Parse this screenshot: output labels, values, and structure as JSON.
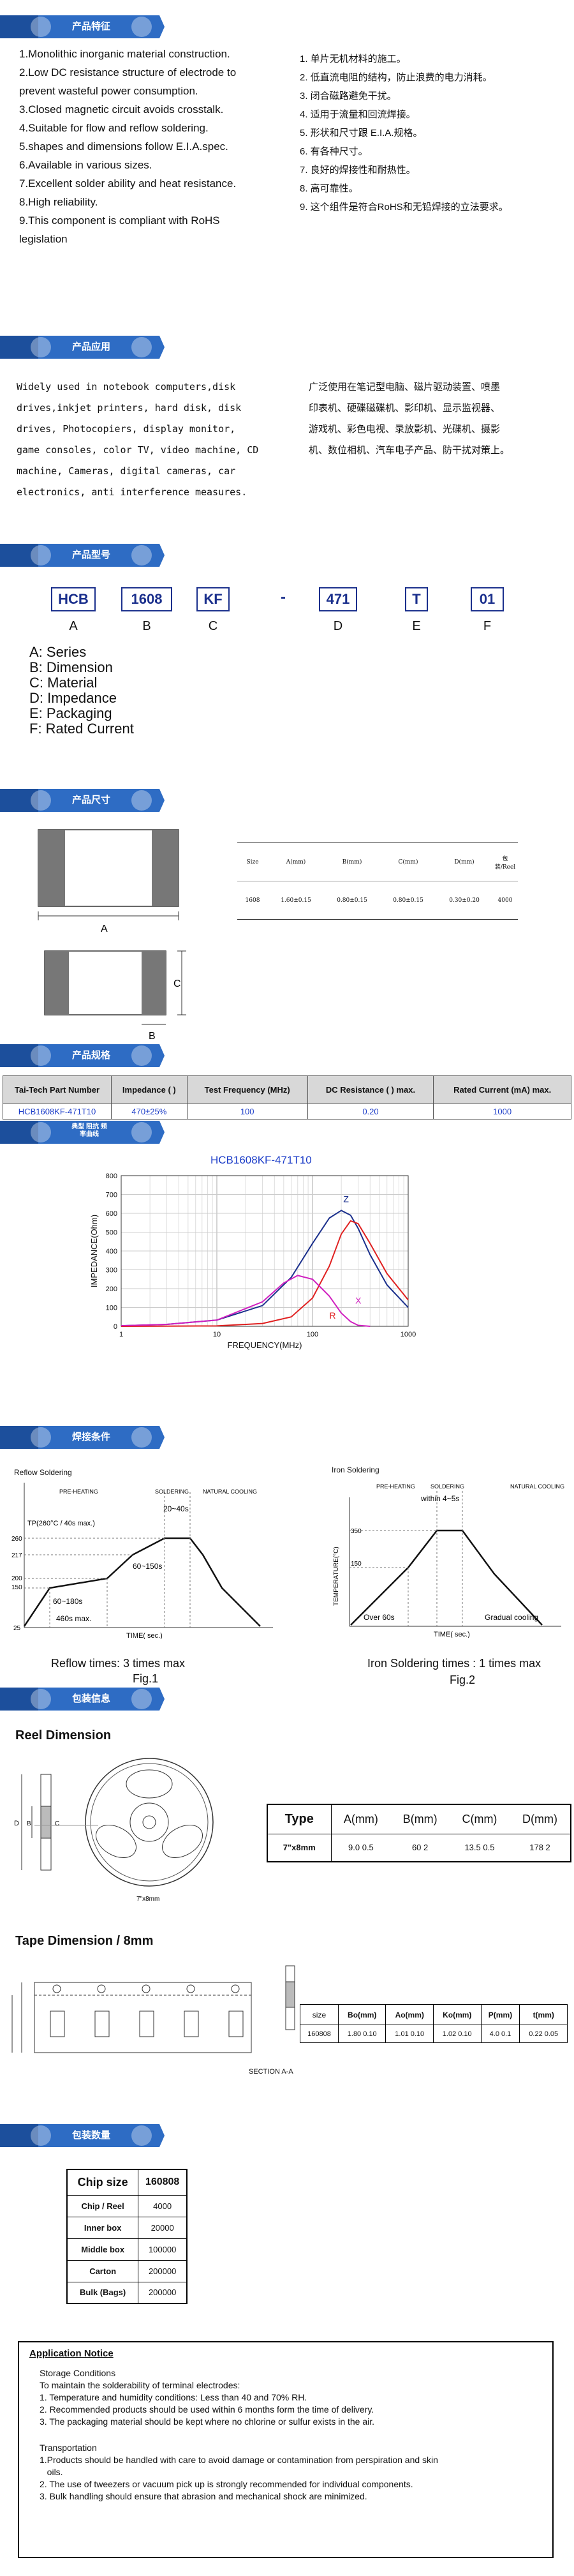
{
  "colors": {
    "banner": "#2e6cc4",
    "banner_dark": "#1c4f9c",
    "navy": "#1a2f8c",
    "link": "#1b3cc8"
  },
  "features": {
    "title": "产品特征",
    "en": [
      "1.Monolithic inorganic material construction.",
      "2.Low DC resistance structure of electrode to",
      "prevent wasteful power consumption.",
      "3.Closed magnetic circuit avoids crosstalk.",
      "4.Suitable for flow and reflow soldering.",
      "5.shapes and dimensions follow E.I.A.spec.",
      "6.Available in various sizes.",
      "7.Excellent solder ability and heat resistance.",
      "8.High reliability.",
      "9.This component is compliant with RoHS",
      "legislation"
    ],
    "cn": [
      "1. 单片无机材料的施工。",
      "2. 低直流电阻的结构，防止浪费的电力消耗。",
      "3. 闭合磁路避免干扰。",
      "4. 适用于流量和回流焊接。",
      "5. 形状和尺寸跟 E.I.A.规格。",
      "6. 有各种尺寸。",
      "7. 良好的焊接性和耐热性。",
      "8. 高可靠性。",
      "9. 这个组件是符合RoHS和无铅焊接的立法要求。"
    ]
  },
  "applications": {
    "title": "产品应用",
    "en": [
      "Widely used in notebook computers,disk",
      "drives,inkjet printers, hard disk, disk",
      "drives, Photocopiers, display monitor,",
      "game consoles, color TV, video machine, CD",
      "machine, Cameras, digital cameras, car",
      "electronics, anti interference measures."
    ],
    "cn": [
      "广泛使用在笔记型电脑、磁片驱动装置、喷墨",
      "印表机、硬碟磁碟机、影印机、显示监视器、",
      "游戏机、彩色电视、录放影机、光碟机、摄影",
      "机、数位相机、汽车电子产品、防干扰对策上。"
    ]
  },
  "part_number": {
    "title": "产品型号",
    "boxes": [
      "HCB",
      "1608",
      "KF",
      "-",
      "471",
      "T",
      "01"
    ],
    "letters": [
      "A",
      "B",
      "C",
      "D",
      "E",
      "F"
    ],
    "legend": [
      "A: Series",
      "B: Dimension",
      "C: Material",
      "D: Impedance",
      "E: Packaging",
      "F: Rated Current"
    ]
  },
  "dimensions": {
    "title": "产品尺寸",
    "a_label": "A",
    "b_label": "B",
    "c_label": "C",
    "headers": [
      "Size",
      "A(mm)",
      "B(mm)",
      "C(mm)",
      "D(mm)",
      "包装/Reel"
    ],
    "row": [
      "1608",
      "1.60±0.15",
      "0.80±0.15",
      "0.80±0.15",
      "0.30±0.20",
      "4000"
    ]
  },
  "specs": {
    "title": "产品规格",
    "headers": [
      "Tai-Tech Part Number",
      "Impedance (    )",
      "Test Frequency (MHz)",
      "DC Resistance (    ) max.",
      "Rated Current (mA) max."
    ],
    "row": [
      "HCB1608KF-471T10",
      "470±25%",
      "100",
      "0.20",
      "1000"
    ]
  },
  "curve": {
    "title_badge": "典型 阻抗 频率曲线",
    "chart_data": {
      "type": "line",
      "title": "HCB1608KF-471T10",
      "xlabel": "FREQUENCY(MHz)",
      "ylabel": "IMPEDANCE(Ohm)",
      "xscale": "log",
      "xlim": [
        1,
        1000
      ],
      "ylim": [
        0,
        800
      ],
      "xticks": [
        "1",
        "10",
        "100",
        "1000"
      ],
      "yticks": [
        "0",
        "100",
        "200",
        "300",
        "400",
        "500",
        "600",
        "700",
        "800"
      ],
      "grid": true,
      "series": [
        {
          "name": "Z",
          "color": "#1a2f8c",
          "x": [
            1,
            3,
            10,
            30,
            60,
            100,
            150,
            200,
            250,
            300,
            400,
            600,
            1000
          ],
          "y": [
            3,
            10,
            33,
            110,
            260,
            440,
            575,
            615,
            590,
            520,
            380,
            220,
            100
          ]
        },
        {
          "name": "R",
          "color": "#e02020",
          "x": [
            1,
            10,
            30,
            60,
            100,
            150,
            200,
            250,
            300,
            400,
            600,
            1000
          ],
          "y": [
            0,
            2,
            15,
            50,
            150,
            320,
            490,
            560,
            545,
            440,
            280,
            140
          ]
        },
        {
          "name": "X",
          "color": "#d020c0",
          "x": [
            1,
            3,
            10,
            30,
            50,
            70,
            100,
            150,
            200,
            250,
            300,
            400
          ],
          "y": [
            3,
            10,
            33,
            130,
            230,
            270,
            250,
            160,
            70,
            25,
            5,
            0
          ]
        }
      ]
    }
  },
  "soldering": {
    "title": "焊接条件",
    "reflow": {
      "caption": "Reflow Soldering",
      "stages": [
        "PRE-HEATING",
        "SOLDERING",
        "NATURAL COOLING"
      ],
      "tp": "TP(260°C / 40s max.)",
      "t1": "20~40s",
      "t2": "60~150s",
      "t3": "60~180s",
      "t4": "460s max.",
      "yticks": [
        "25",
        "150",
        "200",
        "217",
        "260"
      ],
      "xlabel": "TIME( sec.)",
      "footer": "Reflow times: 3 times max",
      "fig": "Fig.1"
    },
    "iron": {
      "caption": "Iron Soldering",
      "stages": [
        "PRE-HEATING",
        "SOLDERING",
        "NATURAL COOLING"
      ],
      "within": "within 4~5s",
      "yticks": [
        "150",
        "350"
      ],
      "ylabel": "TEMPERATURE(°C)",
      "over": "Over 60s",
      "gradual": "Gradual  cooling",
      "xlabel": "TIME( sec.)",
      "footer": "Iron Soldering times : 1 times max",
      "fig": "Fig.2"
    }
  },
  "packaging": {
    "title": "包装信息",
    "reel_heading": "Reel Dimension",
    "reel_caption": "7\"x8mm",
    "reel_headers": [
      "Type",
      "A(mm)",
      "B(mm)",
      "C(mm)",
      "D(mm)"
    ],
    "reel_row": [
      "7\"x8mm",
      "9.0  0.5",
      "60  2",
      "13.5  0.5",
      "178  2"
    ],
    "tape_heading": "Tape Dimension / 8mm",
    "tape_headers": [
      "size",
      "Bo(mm)",
      "Ao(mm)",
      "Ko(mm)",
      "P(mm)",
      "t(mm)"
    ],
    "tape_row": [
      "160808",
      "1.80 0.10",
      "1.01 0.10",
      "1.02 0.10",
      "4.0  0.1",
      "0.22 0.05"
    ],
    "section": "SECTION A-A"
  },
  "quantity": {
    "title": "包装数量",
    "header": [
      "Chip size",
      "160808"
    ],
    "rows": [
      [
        "Chip / Reel",
        "4000"
      ],
      [
        "Inner box",
        "20000"
      ],
      [
        "Middle box",
        "100000"
      ],
      [
        "Carton",
        "200000"
      ],
      [
        "Bulk (Bags)",
        "200000"
      ]
    ]
  },
  "notice": {
    "title": "Application Notice",
    "storage_title": "Storage Conditions",
    "storage_intro": "To maintain the solderability of terminal electrodes:",
    "storage": [
      "1. Temperature and humidity conditions: Less than 40      and 70% RH.",
      "2. Recommended products should be used within 6 months form the time of delivery.",
      "3. The packaging material should be kept where no chlorine or sulfur exists in the air."
    ],
    "transport_title": "Transportation",
    "transport": [
      "1.Products should be handled with care to avoid damage or contamination from perspiration and skin",
      "   oils.",
      "2. The use of tweezers or vacuum pick up is strongly recommended for individual components.",
      "3. Bulk handling should ensure that abrasion and mechanical shock are minimized."
    ]
  }
}
